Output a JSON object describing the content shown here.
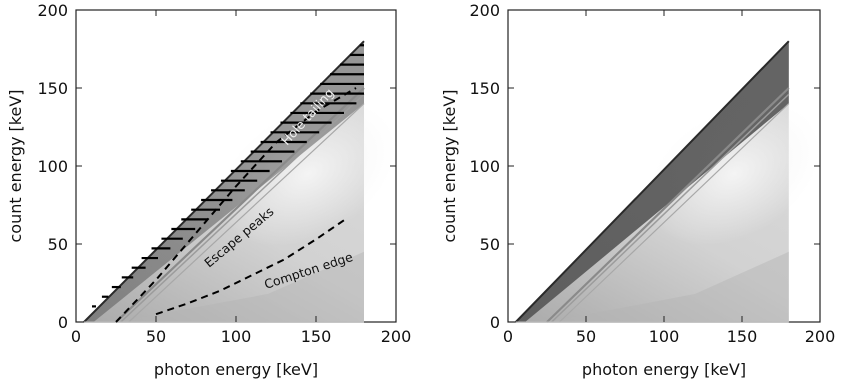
{
  "chart_data": [
    {
      "type": "heatmap",
      "title": "",
      "xlabel": "photon energy [keV]",
      "ylabel": "count energy [keV]",
      "xlim": [
        0,
        200
      ],
      "ylim": [
        0,
        200
      ],
      "xticks": [
        "0",
        "50",
        "100",
        "150",
        "200"
      ],
      "yticks": [
        "0",
        "50",
        "100",
        "150",
        "200"
      ],
      "data_extent": {
        "x": [
          5,
          180
        ],
        "y": [
          0,
          180
        ]
      },
      "colormap": "grayscale",
      "annotations": [
        {
          "text": "Hole tailing",
          "x": 128,
          "y": 115,
          "angle_deg": 48
        },
        {
          "text": "Escape peaks",
          "x": 82,
          "y": 42,
          "angle_deg": 40
        },
        {
          "text": "Compton edge",
          "x": 133,
          "y": 30,
          "angle_deg": 18
        }
      ],
      "series": [
        {
          "name": "Compton edge",
          "style": "dashed",
          "x": [
            50,
            70,
            90,
            110,
            130,
            150,
            170
          ],
          "y": [
            5,
            12,
            20,
            30,
            40,
            53,
            67
          ]
        },
        {
          "name": "Escape peaks",
          "style": "dashed",
          "x": [
            25,
            50,
            75,
            100,
            125,
            150,
            175
          ],
          "y": [
            0,
            27,
            57,
            87,
            115,
            135,
            150
          ]
        }
      ],
      "hatched_region": "above full-energy diagonal to y = 0.8*x"
    },
    {
      "type": "heatmap",
      "title": "",
      "xlabel": "photon energy [keV]",
      "ylabel": "count energy [keV]",
      "xlim": [
        0,
        200
      ],
      "ylim": [
        0,
        200
      ],
      "xticks": [
        "0",
        "50",
        "100",
        "150",
        "200"
      ],
      "yticks": [
        "0",
        "50",
        "100",
        "150",
        "200"
      ],
      "data_extent": {
        "x": [
          5,
          180
        ],
        "y": [
          0,
          180
        ]
      },
      "colormap": "grayscale"
    }
  ]
}
